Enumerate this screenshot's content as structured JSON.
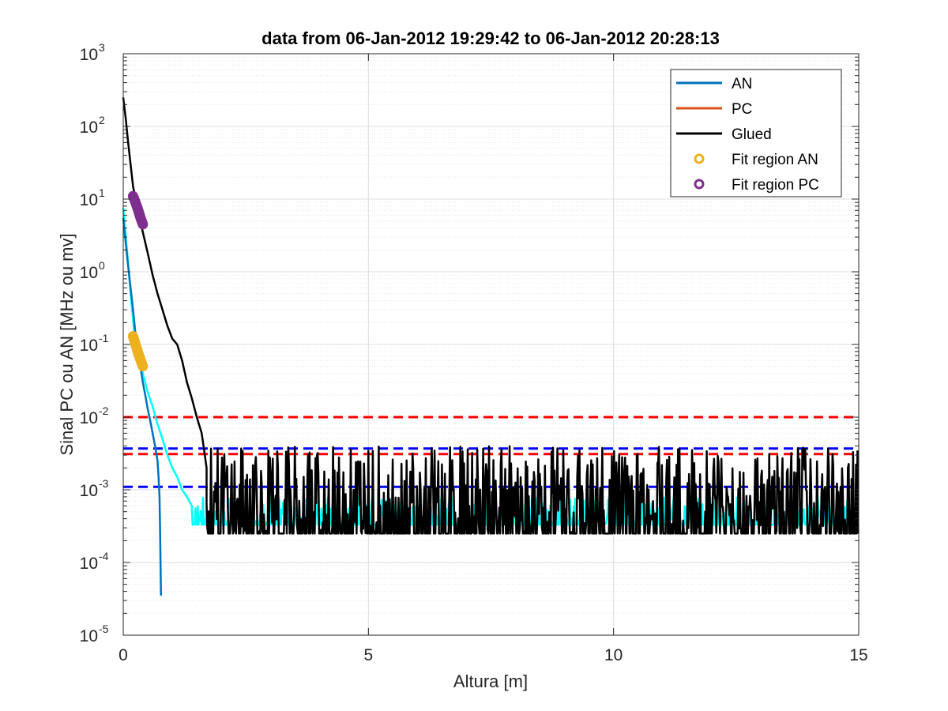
{
  "chart_data": {
    "type": "line",
    "title": "data from 06-Jan-2012 19:29:42 to 06-Jan-2012 20:28:13",
    "xlabel": "Altura [m]",
    "ylabel": "Sinal PC ou AN [MHz ou mv]",
    "xlim": [
      0,
      15
    ],
    "ylim": [
      1e-05,
      1000
    ],
    "yscale": "log",
    "grid": true,
    "minor_grid": true,
    "legend_position": "top-right",
    "x_ticks": [
      "0",
      "5",
      "10",
      "15"
    ],
    "y_tick_exponents": [
      "-5",
      "-4",
      "-3",
      "-2",
      "-1",
      "0",
      "1",
      "2",
      "3"
    ],
    "y_tick_base": "10",
    "series": [
      {
        "name": "AN",
        "color": "#0072BD",
        "x": [
          0.0,
          0.05,
          0.1,
          0.15,
          0.2,
          0.25,
          0.3,
          0.35,
          0.4,
          0.45,
          0.5,
          0.55,
          0.6,
          0.65,
          0.7,
          0.72,
          0.74,
          0.75,
          0.76,
          0.77
        ],
        "y": [
          5.5,
          2.5,
          1.2,
          0.6,
          0.3,
          0.14,
          0.08,
          0.05,
          0.03,
          0.02,
          0.013,
          0.009,
          0.006,
          0.004,
          0.0025,
          0.0015,
          0.0008,
          0.0003,
          0.0001,
          3.5e-05
        ]
      },
      {
        "name": "PC",
        "color": "#D95319",
        "x": [],
        "y": []
      },
      {
        "name": "Glued",
        "color": "#000000",
        "x": [
          0.0,
          0.05,
          0.1,
          0.15,
          0.2,
          0.3,
          0.4,
          0.5,
          0.6,
          0.7,
          0.8,
          0.9,
          1.0,
          1.1,
          1.2,
          1.3,
          1.4,
          1.5,
          1.6,
          1.65,
          1.7
        ],
        "y": [
          250,
          130,
          60,
          30,
          15,
          7,
          3.5,
          1.8,
          0.9,
          0.5,
          0.3,
          0.18,
          0.12,
          0.1,
          0.06,
          0.03,
          0.018,
          0.01,
          0.006,
          0.0035,
          0.002
        ],
        "noise_range": [
          1.7,
          15
        ],
        "noise_min": 0.00025,
        "noise_max": 0.004
      },
      {
        "name": "Fit region AN",
        "color": "#EDB120",
        "marker": "o",
        "x": [
          0.2,
          0.25,
          0.3,
          0.35,
          0.4
        ],
        "y": [
          0.13,
          0.1,
          0.078,
          0.062,
          0.05
        ]
      },
      {
        "name": "Fit region PC",
        "color": "#7E2F8E",
        "marker": "o",
        "x": [
          0.2,
          0.25,
          0.3,
          0.35,
          0.4
        ],
        "y": [
          11,
          9,
          7.2,
          5.6,
          4.5
        ]
      },
      {
        "color": "#00FFFF",
        "x": [
          0.0,
          0.05,
          0.1,
          0.15,
          0.2,
          0.25,
          0.3,
          0.4,
          0.5,
          0.6,
          0.7,
          0.8,
          0.9,
          1.0,
          1.1,
          1.2,
          1.3,
          1.4
        ],
        "y": [
          7.5,
          3.2,
          1.3,
          0.5,
          0.22,
          0.1,
          0.07,
          0.04,
          0.022,
          0.014,
          0.008,
          0.005,
          0.003,
          0.002,
          0.0015,
          0.001,
          0.0008,
          0.0006
        ],
        "noise_range": [
          1.4,
          15
        ],
        "noise_min": 0.00033,
        "noise_max": 0.0008
      }
    ],
    "reference_lines": [
      {
        "y": 0.01,
        "color": "#FF0000",
        "style": "dashed"
      },
      {
        "y": 0.0031,
        "color": "#FF0000",
        "style": "dashed"
      },
      {
        "y": 0.0037,
        "color": "#0000FF",
        "style": "dashed"
      },
      {
        "y": 0.0011,
        "color": "#0000FF",
        "style": "dashed"
      }
    ]
  }
}
